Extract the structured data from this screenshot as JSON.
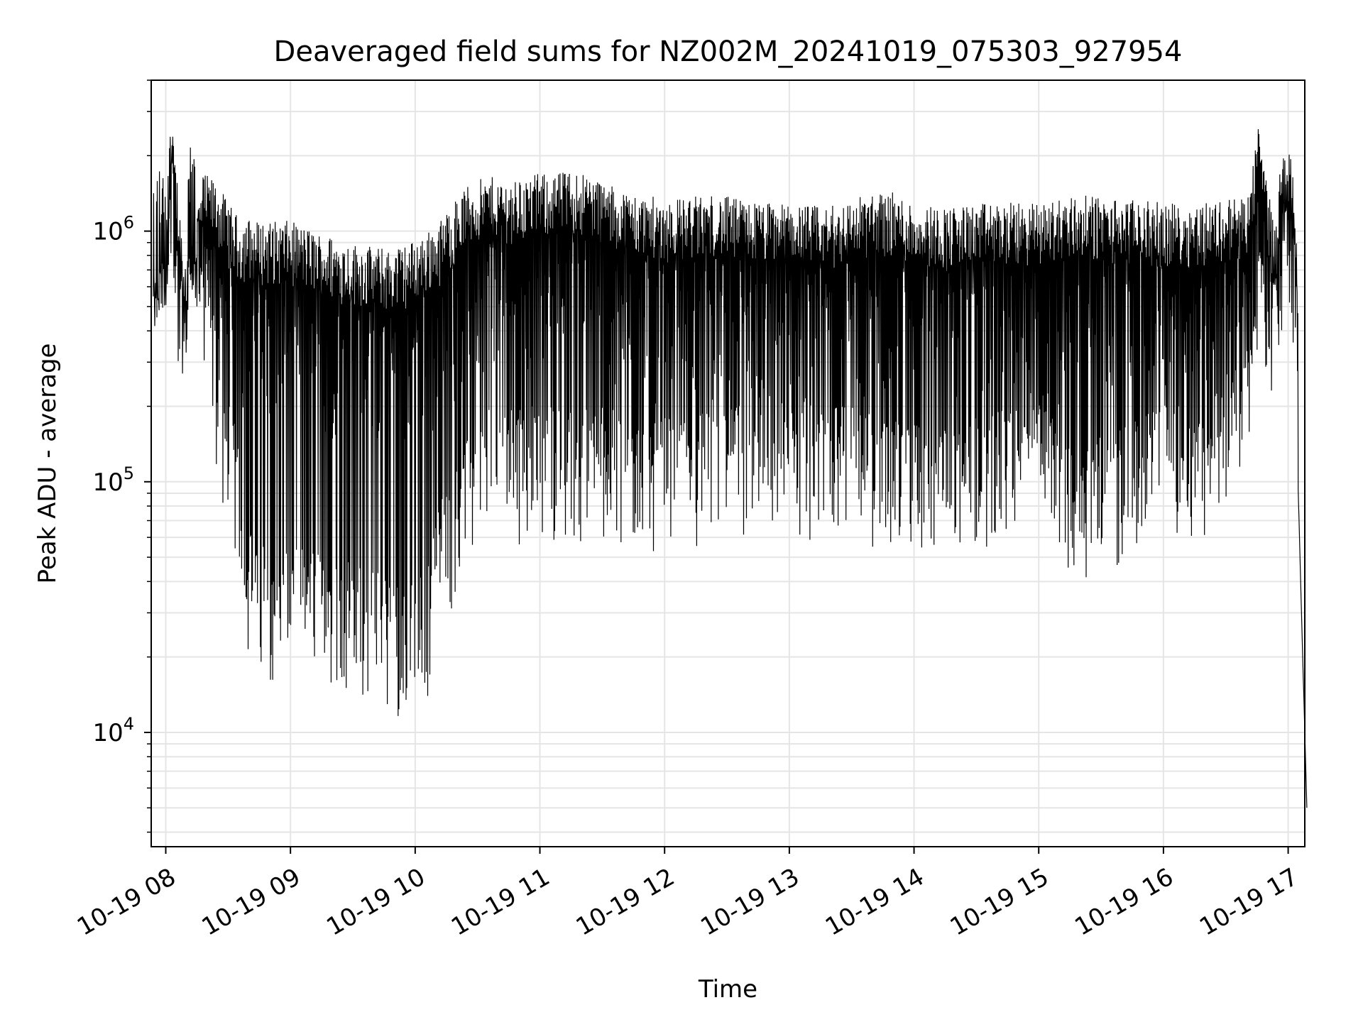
{
  "chart_data": {
    "type": "line",
    "title": "Deaveraged field sums for NZ002M_20241019_075303_927954",
    "xlabel": "Time",
    "ylabel": "Peak ADU - average",
    "y_scale": "log",
    "ylim": [
      3500,
      4000000
    ],
    "xlim": [
      "10-19 07:53",
      "10-19 17:08"
    ],
    "grid": true,
    "line_color": "#000000",
    "x_ticks": [
      "10-19 08",
      "10-19 09",
      "10-19 10",
      "10-19 11",
      "10-19 12",
      "10-19 13",
      "10-19 14",
      "10-19 15",
      "10-19 16",
      "10-19 17"
    ],
    "y_ticks": [
      {
        "base": "10",
        "exp": "4",
        "value": 10000
      },
      {
        "base": "10",
        "exp": "5",
        "value": 100000
      },
      {
        "base": "10",
        "exp": "6",
        "value": 1000000
      }
    ],
    "series": [
      {
        "time_hours": [
          7.9,
          8.0,
          8.05,
          8.1,
          8.15,
          8.2,
          8.25,
          8.3,
          8.4,
          8.5,
          8.6,
          8.65,
          8.7,
          8.8,
          9.0,
          9.2,
          9.5,
          9.8,
          9.95,
          10.1,
          10.2,
          10.3,
          10.4,
          10.5,
          10.6,
          10.8,
          11.0,
          11.3,
          11.4,
          11.6,
          11.8,
          12.0,
          12.4,
          12.8,
          13.0,
          13.3,
          13.6,
          13.8,
          14.0,
          14.3,
          14.6,
          15.0,
          15.3,
          15.6,
          16.0,
          16.3,
          16.7,
          16.75,
          16.9,
          16.95,
          17.0,
          17.05,
          17.1,
          17.15
        ],
        "upper_envelope": [
          650000,
          800000,
          2600000,
          1500000,
          700000,
          900000,
          1200000,
          1700000,
          1600000,
          1300000,
          1100000,
          1150000,
          1100000,
          1100000,
          1100000,
          1000000,
          900000,
          850000,
          900000,
          1000000,
          1100000,
          1300000,
          1500000,
          1600000,
          1650000,
          1600000,
          1700000,
          1750000,
          1700000,
          1500000,
          1400000,
          1350000,
          1400000,
          1300000,
          1300000,
          1250000,
          1400000,
          1450000,
          1300000,
          1250000,
          1300000,
          1300000,
          1400000,
          1350000,
          1300000,
          1300000,
          1400000,
          2800000,
          1000000,
          2300000,
          2200000,
          1600000,
          500000,
          5000
        ],
        "lower_envelope": [
          550000,
          500000,
          900000,
          300000,
          250000,
          700000,
          500000,
          300000,
          100000,
          60000,
          40000,
          20000,
          17000,
          16000,
          16000,
          15000,
          14000,
          12000,
          11000,
          13000,
          25000,
          30000,
          40000,
          50000,
          60000,
          55000,
          60000,
          55000,
          60000,
          55000,
          50000,
          52000,
          55000,
          60000,
          55000,
          60000,
          55000,
          50000,
          50000,
          45000,
          55000,
          60000,
          40000,
          45000,
          60000,
          50000,
          100000,
          300000,
          200000,
          350000,
          400000,
          350000,
          40000,
          5000
        ]
      }
    ]
  }
}
